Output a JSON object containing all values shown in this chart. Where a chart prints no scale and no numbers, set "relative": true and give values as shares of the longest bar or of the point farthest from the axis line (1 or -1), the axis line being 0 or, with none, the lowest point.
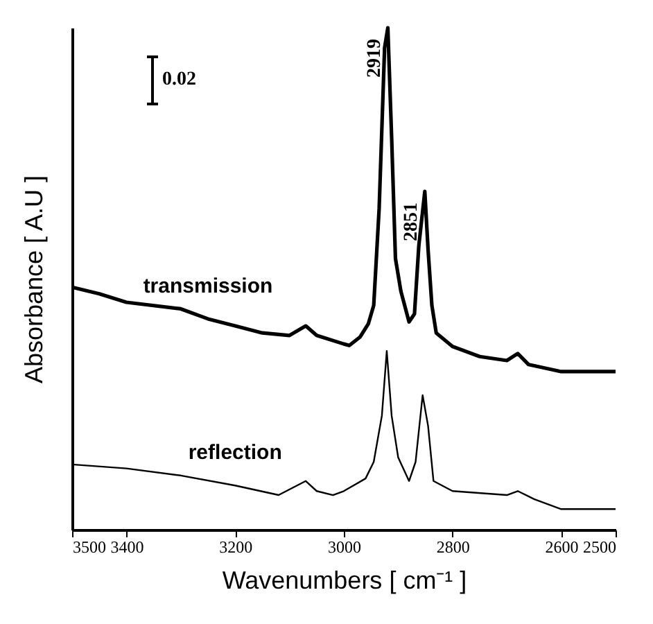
{
  "chart_data": {
    "type": "line",
    "relative": true,
    "xlabel": "Wavenumbers [ cm⁻¹ ]",
    "ylabel": "Absorbance [ A.U ]",
    "xlim": [
      3500,
      2500
    ],
    "xticks": [
      3500,
      3400,
      3200,
      3000,
      2800,
      2600,
      2500
    ],
    "grid": false,
    "marker": "none",
    "line_style": "solid",
    "annotations": [
      "0.02",
      {
        "text": "2919",
        "x": 2919,
        "y": 1.0
      },
      {
        "text": "2851",
        "x": 2851,
        "y": 0.674
      }
    ],
    "series": [
      {
        "name": "transmission",
        "color": "#000000",
        "x": [
          3500,
          3450,
          3400,
          3300,
          3250,
          3200,
          3150,
          3100,
          3070,
          3050,
          3000,
          2990,
          2970,
          2955,
          2945,
          2935,
          2925,
          2919,
          2912,
          2905,
          2895,
          2880,
          2870,
          2862,
          2851,
          2845,
          2838,
          2830,
          2800,
          2750,
          2700,
          2680,
          2660,
          2600,
          2500
        ],
        "values": [
          0.483,
          0.47,
          0.453,
          0.44,
          0.42,
          0.406,
          0.392,
          0.387,
          0.406,
          0.387,
          0.37,
          0.367,
          0.384,
          0.41,
          0.447,
          0.64,
          0.96,
          1.0,
          0.78,
          0.54,
          0.475,
          0.414,
          0.43,
          0.566,
          0.674,
          0.558,
          0.447,
          0.392,
          0.365,
          0.345,
          0.337,
          0.351,
          0.329,
          0.315,
          0.315
        ]
      },
      {
        "name": "reflection",
        "color": "#000000",
        "x": [
          3500,
          3400,
          3300,
          3200,
          3120,
          3070,
          3050,
          3020,
          3000,
          2960,
          2945,
          2930,
          2921,
          2912,
          2900,
          2880,
          2868,
          2855,
          2845,
          2835,
          2800,
          2700,
          2680,
          2650,
          2600,
          2500
        ],
        "values": [
          0.13,
          0.122,
          0.108,
          0.088,
          0.069,
          0.097,
          0.077,
          0.069,
          0.077,
          0.102,
          0.135,
          0.227,
          0.356,
          0.227,
          0.144,
          0.097,
          0.135,
          0.268,
          0.207,
          0.097,
          0.077,
          0.069,
          0.077,
          0.061,
          0.041,
          0.041
        ]
      }
    ]
  }
}
